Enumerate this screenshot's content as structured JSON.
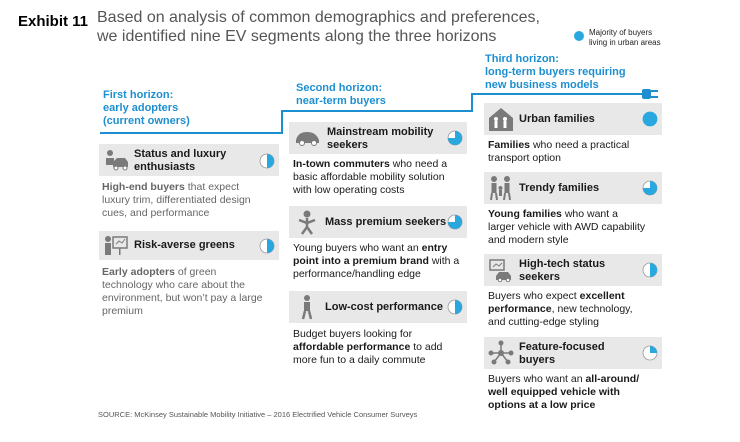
{
  "exhibit_label": "Exhibit 11",
  "title_line1": "Based on analysis of common demographics and preferences,",
  "title_line2": "we identified nine EV segments along the three horizons",
  "legend": {
    "line1": "Majority of buyers",
    "line2": "living in urban areas",
    "color": "#29a8e0"
  },
  "colors": {
    "accent": "#1d8fd0",
    "urban": "#29a8e0",
    "card": "#e8e8e8"
  },
  "horizons": {
    "first": {
      "line1": "First horizon:",
      "line2": "early adopters",
      "line3": "(current owners)"
    },
    "second": {
      "line1": "Second horizon:",
      "line2": "near-term buyers"
    },
    "third": {
      "line1": "Third horizon:",
      "line2": "long-term buyers requiring",
      "line3": "new business models"
    }
  },
  "segments": {
    "status_luxury": {
      "name1": "Status and luxury",
      "name2": "enthusiasts",
      "icon": "luxury-car-icon",
      "urban_share": 0.5,
      "desc_b1": "High-end buyers",
      "desc_t1": " that expect",
      "desc_t2": "luxury trim, differentiated design",
      "desc_t3": "cues, and performance"
    },
    "risk_averse": {
      "name1": "Risk-averse greens",
      "icon": "billboard-icon",
      "urban_share": 0.5,
      "desc_b1": "Early adopters",
      "desc_t1": " of green",
      "desc_t2": "technology who care about the",
      "desc_t3": "environment, but won’t pay a large",
      "desc_t4": "premium"
    },
    "mainstream": {
      "name1": "Mainstream mobility",
      "name2": "seekers",
      "icon": "compact-car-icon",
      "urban_share": 0.75,
      "desc_b1": "In-town commuters",
      "desc_t1": " who need a",
      "desc_t2": "basic affordable mobility solution",
      "desc_t3": "with low operating costs"
    },
    "mass_premium": {
      "name1": "Mass premium seekers",
      "icon": "buyer-icon",
      "urban_share": 0.75,
      "desc_t1a": "Young buyers who want an ",
      "desc_b1": "entry",
      "desc_b2": "point into a premium brand",
      "desc_t2": " with a",
      "desc_t3": "performance/handling edge"
    },
    "low_cost": {
      "name1": "Low-cost performance",
      "icon": "runner-icon",
      "urban_share": 0.5,
      "desc_t1": "Budget buyers looking for",
      "desc_b1": "affordable performance",
      "desc_t2": " to add",
      "desc_t3": "more fun to a daily commute"
    },
    "urban_families": {
      "name1": "Urban families",
      "icon": "family-house-icon",
      "urban_share": 1,
      "desc_b1": "Families",
      "desc_t1": " who need a practical",
      "desc_t2": "transport option"
    },
    "trendy_families": {
      "name1": "Trendy families",
      "icon": "family-icon",
      "urban_share": 0.75,
      "desc_b1": "Young families",
      "desc_t1": " who want a",
      "desc_t2": "larger vehicle with AWD capability",
      "desc_t3": "and modern style"
    },
    "high_tech": {
      "name1": "High-tech status",
      "name2": "seekers",
      "icon": "tech-car-icon",
      "urban_share": 0.5,
      "desc_t1": "Buyers who expect ",
      "desc_b1": "excellent",
      "desc_b2": "performance",
      "desc_t2": ", new technology,",
      "desc_t3": "and cutting-edge styling"
    },
    "feature_focused": {
      "name1": "Feature-focused",
      "name2": "buyers",
      "icon": "network-icon",
      "urban_share": 0.25,
      "desc_t1": "Buyers who want an ",
      "desc_b1": "all-around/",
      "desc_b2": "well equipped vehicle with",
      "desc_b3": "options at a low price"
    }
  },
  "source": "SOURCE: McKinsey Sustainable Mobility Initiative – 2016 Electrified Vehicle Consumer Surveys"
}
